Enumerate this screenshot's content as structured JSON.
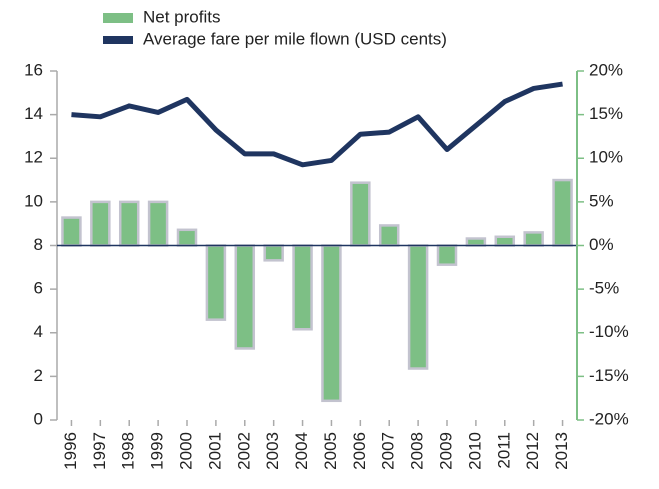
{
  "chart_data": {
    "type": "bar_line",
    "categories": [
      "1996",
      "1997",
      "1998",
      "1999",
      "2000",
      "2001",
      "2002",
      "2003",
      "2004",
      "2005",
      "2006",
      "2007",
      "2008",
      "2009",
      "2010",
      "2011",
      "2012",
      "2013"
    ],
    "series": [
      {
        "name": "Net profits",
        "type": "bar",
        "axis": "y2",
        "color": "#7dbf85",
        "edge_color": "#c3c3cf",
        "values": [
          3.2,
          5,
          5,
          5,
          1.8,
          -8.5,
          -11.8,
          -1.7,
          -9.6,
          -17.8,
          7.2,
          2.3,
          -14.1,
          -2.2,
          0.8,
          1.0,
          1.5,
          7.5
        ]
      },
      {
        "name": "Average fare per mile flown (USD cents)",
        "type": "line",
        "axis": "y",
        "color": "#1f3560",
        "values": [
          14.0,
          13.9,
          14.4,
          14.1,
          14.7,
          13.3,
          12.2,
          12.2,
          11.7,
          11.9,
          13.1,
          13.2,
          13.9,
          12.4,
          13.5,
          14.6,
          15.2,
          15.4
        ]
      }
    ],
    "ylim": [
      0,
      16
    ],
    "yticks": [
      0,
      2,
      4,
      6,
      8,
      10,
      12,
      14,
      16
    ],
    "y2lim": [
      -20,
      20
    ],
    "y2ticks": [
      {
        "value": -20,
        "label": "-20%"
      },
      {
        "value": -15,
        "label": "-15%"
      },
      {
        "value": -10,
        "label": "-10%"
      },
      {
        "value": -5,
        "label": "-5%"
      },
      {
        "value": 0,
        "label": "0%"
      },
      {
        "value": 5,
        "label": "5%"
      },
      {
        "value": 10,
        "label": "10%"
      },
      {
        "value": 15,
        "label": "15%"
      },
      {
        "value": 20,
        "label": "20%"
      }
    ],
    "legend": "top-left",
    "grid": false
  }
}
